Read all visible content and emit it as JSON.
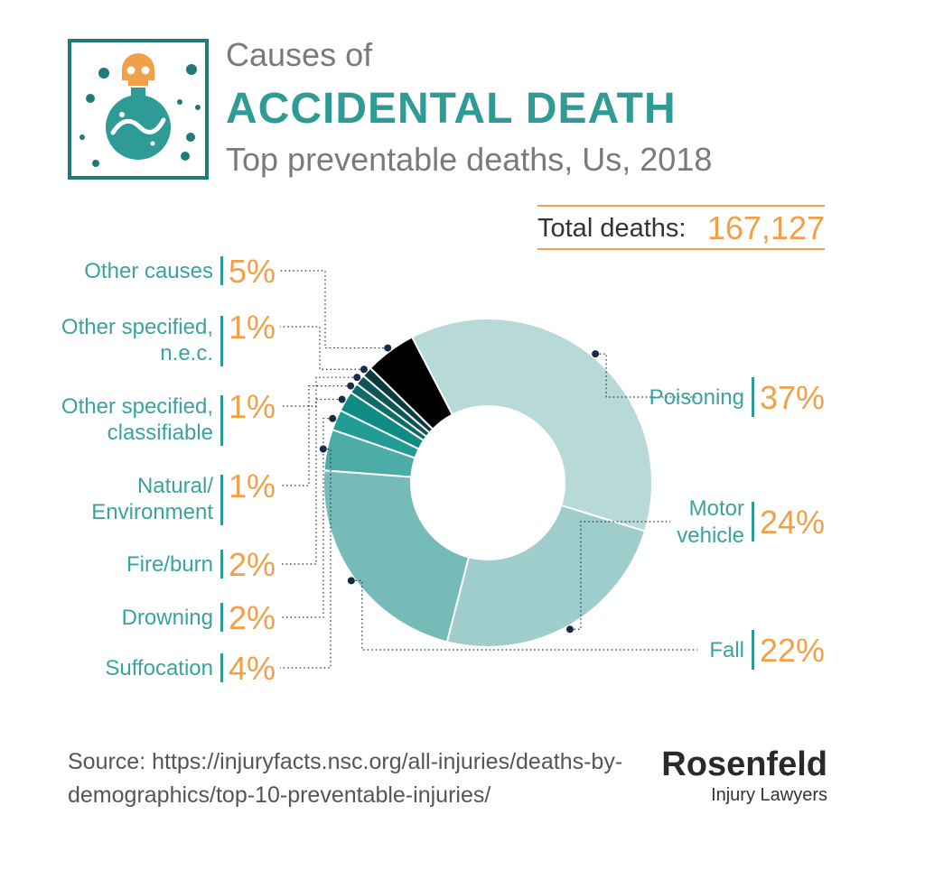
{
  "header": {
    "title_prefix": "Causes of",
    "title_main": "ACCIDENTAL DEATH",
    "subtitle": "Top preventable deaths, Us, 2018"
  },
  "total": {
    "label": "Total deaths:",
    "value": "167,127"
  },
  "source": "Source: https://injuryfacts.nsc.org/all-injuries/deaths-by-demographics/top-10-preventable-injuries/",
  "brand": {
    "name": "Rosenfeld",
    "tagline": "Injury Lawyers"
  },
  "colors": {
    "teal_dark": "#1f7a78",
    "teal": "#2e9b96",
    "orange": "#f0a048",
    "skull": "#f0a048"
  },
  "chart_data": {
    "type": "pie",
    "donut": true,
    "title": "Causes of ACCIDENTAL DEATH",
    "subtitle": "Top preventable deaths, Us, 2018",
    "unit": "%",
    "categories": [
      {
        "name": "Poisoning",
        "lines": [
          "Poisoning"
        ],
        "value": 37,
        "color": "#b7dad8"
      },
      {
        "name": "Motor vehicle",
        "lines": [
          "Motor",
          "vehicle"
        ],
        "value": 24,
        "color": "#9fcdcb"
      },
      {
        "name": "Fall",
        "lines": [
          "Fall"
        ],
        "value": 22,
        "color": "#75bcb9"
      },
      {
        "name": "Suffocation",
        "lines": [
          "Suffocation"
        ],
        "value": 4,
        "color": "#4eaca8"
      },
      {
        "name": "Drowning",
        "lines": [
          "Drowning"
        ],
        "value": 2,
        "color": "#229d96"
      },
      {
        "name": "Fire/burn",
        "lines": [
          "Fire/burn"
        ],
        "value": 2,
        "color": "#0f8a85"
      },
      {
        "name": "Natural/Environment",
        "lines": [
          "Natural/",
          "Environment"
        ],
        "value": 1,
        "color": "#0f6b68"
      },
      {
        "name": "Other specified, classifiable",
        "lines": [
          "Other specified,",
          "classifiable"
        ],
        "value": 1,
        "color": "#0c5655"
      },
      {
        "name": "Other specified, n.e.c.",
        "lines": [
          "Other specified,",
          "n.e.c."
        ],
        "value": 1,
        "color": "#083c3c"
      },
      {
        "name": "Other causes",
        "lines": [
          "Other causes"
        ],
        "value": 5,
        "color": "#000000"
      }
    ]
  }
}
